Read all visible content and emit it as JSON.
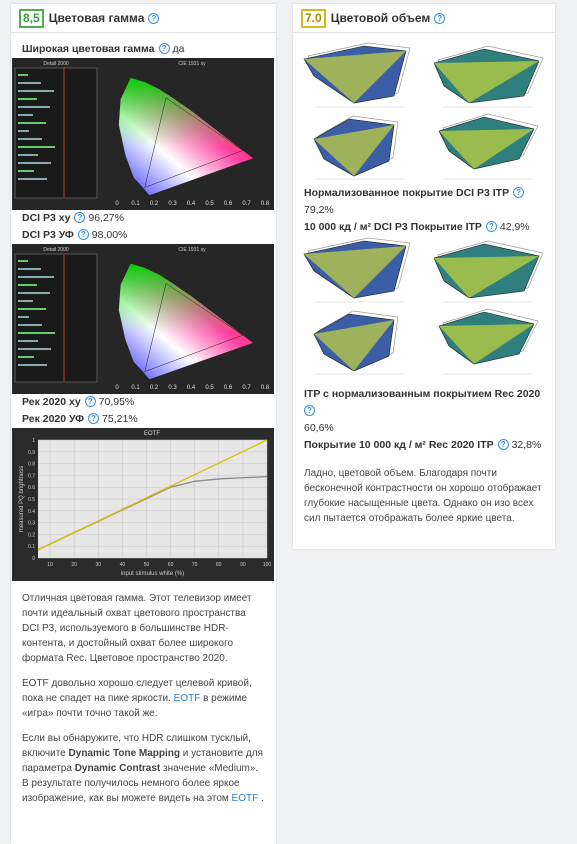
{
  "help_icon": "?",
  "left": {
    "score": "8,5",
    "title": "Цветовая гамма",
    "wide_gamut": {
      "label": "Широкая цветовая гамма",
      "value": "да"
    },
    "cie_plots": [
      {
        "panel_title": "Detail 2000",
        "title": "CIE 1931 xy"
      },
      {
        "panel_title": "Detail 2000",
        "title": "CIE 1931 xy"
      }
    ],
    "cie_xticks": [
      0,
      0.1,
      0.2,
      0.3,
      0.4,
      0.5,
      0.6,
      0.7,
      0.8
    ],
    "metrics_a": [
      {
        "label": "DCI P3 xy",
        "value": "96,27%"
      },
      {
        "label": "DCI P3 УФ",
        "value": "98,00%"
      }
    ],
    "metrics_b": [
      {
        "label": "Рек 2020 xy",
        "value": "70,95%"
      },
      {
        "label": "Рек 2020 УФ",
        "value": "75,21%"
      }
    ],
    "eotf": {
      "title": "EOTF",
      "x_label": "input stimulus white (%)",
      "y_label": "measured PQ brightness",
      "xlim": [
        5,
        100
      ],
      "ylim": [
        0,
        1
      ],
      "xticks": [
        10,
        20,
        30,
        40,
        50,
        60,
        70,
        80,
        90,
        100
      ],
      "yticks": [
        0,
        0.1,
        0.2,
        0.3,
        0.4,
        0.5,
        0.6,
        0.7,
        0.8,
        0.9,
        1
      ],
      "grid": true,
      "series": [
        {
          "color": "#8a8a8a",
          "x": [
            5,
            60,
            70,
            80,
            90,
            100
          ],
          "values": [
            0.07,
            0.6,
            0.65,
            0.67,
            0.68,
            0.69
          ]
        },
        {
          "color": "#d4c400",
          "x": [
            5,
            100
          ],
          "values": [
            0.07,
            1
          ]
        }
      ]
    },
    "paragraphs": [
      [
        {
          "text": "Отличная цветовая гамма. Этот телевизор имеет почти идеальный охват цветового пространства DCI P3, используемого в большинстве HDR-контента, и достойный охват более широкого формата Rec. Цветовое пространство 2020."
        }
      ],
      [
        {
          "text": "EOTF довольно хорошо следует целевой кривой, пока не спадет на пике яркости. "
        },
        {
          "text": "EOTF",
          "style": "link"
        },
        {
          "text": " в режиме «игра» почти точно такой же."
        }
      ],
      [
        {
          "text": "Если вы обнаружите, что HDR слишком тусклый, включите "
        },
        {
          "text": "Dynamic Tone Mapping",
          "style": "bold"
        },
        {
          "text": " и установите для параметра "
        },
        {
          "text": "Dynamic Contrast",
          "style": "bold"
        },
        {
          "text": " значение «Medium». В результате получилось немного более яркое изображение, как вы можете видеть на этом "
        },
        {
          "text": "EOTF",
          "style": "link"
        },
        {
          "text": " ."
        }
      ]
    ]
  },
  "right": {
    "score": "7.0",
    "title": "Цветовой объем",
    "metrics_a": [
      {
        "label": "Нормализованное покрытие DCI P3 ITP",
        "value": "79,2%"
      },
      {
        "label": "10 000 кд / м² DCI P3 Покрытие ITP",
        "value": "42,9%"
      }
    ],
    "metric_itp": {
      "label": "ITP с нормализованным покрытием Rec 2020",
      "value": "60,6%"
    },
    "metric_cov": {
      "label": "Покрытие 10 000 кд / м² Rec 2020 ITP",
      "value": "32,8%"
    },
    "paragraphs": [
      [
        {
          "text": "Ладно, цветовой объем. Благодаря почти бесконечной контрастности он хорошо отображает глубокие насыщенные цвета. Однако он изо всех сил пытается отображать более яркие цвета."
        }
      ]
    ]
  }
}
